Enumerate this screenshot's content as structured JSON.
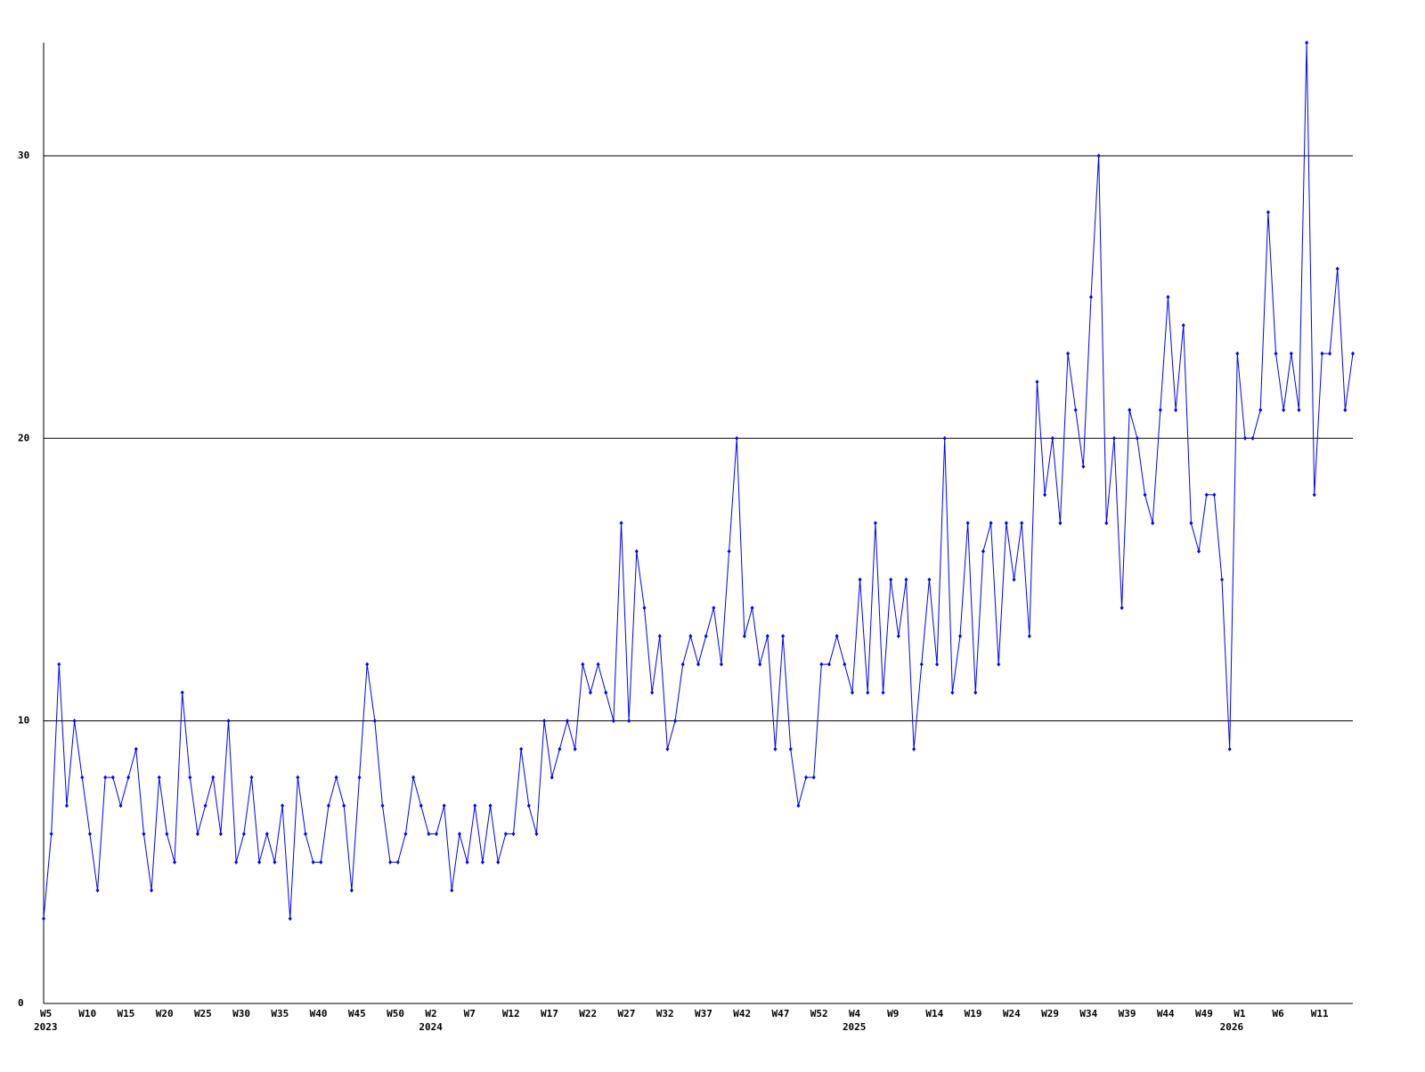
{
  "chart_data": {
    "type": "line",
    "color": "#0000ff",
    "categories": [
      "W5",
      null,
      null,
      null,
      null,
      "W10",
      null,
      null,
      null,
      null,
      "W15",
      null,
      null,
      null,
      null,
      "W20",
      null,
      null,
      null,
      null,
      "W25",
      null,
      null,
      null,
      null,
      "W30",
      null,
      null,
      null,
      null,
      "W35",
      null,
      null,
      null,
      null,
      "W40",
      null,
      null,
      null,
      null,
      "W45",
      null,
      null,
      null,
      null,
      "W50",
      null,
      null,
      null,
      null,
      "W2",
      null,
      null,
      null,
      null,
      "W7",
      null,
      null,
      null,
      null,
      "W12",
      null,
      null,
      null,
      null,
      "W17",
      null,
      null,
      null,
      null,
      "W22",
      null,
      null,
      null,
      null,
      "W27",
      null,
      null,
      null,
      null,
      "W32",
      null,
      null,
      null,
      null,
      "W37",
      null,
      null,
      null,
      null,
      "W42",
      null,
      null,
      null,
      null,
      "W47",
      null,
      null,
      null,
      null,
      "W52",
      null,
      null,
      null,
      null,
      "W4",
      null,
      null,
      null,
      null,
      "W9",
      null,
      null,
      null,
      null,
      "W14",
      null,
      null,
      null,
      null,
      "W19",
      null,
      null,
      null,
      null,
      "W24",
      null,
      null,
      null,
      null,
      "W29",
      null,
      null,
      null,
      null,
      "W34",
      null,
      null,
      null,
      null,
      "W39",
      null,
      null,
      null,
      null,
      "W44",
      null,
      null,
      null,
      null,
      "W49",
      null,
      null,
      null,
      null,
      "W1",
      null,
      null,
      null,
      null,
      "W6",
      null,
      null,
      null,
      null,
      "W11",
      null,
      null,
      null,
      null,
      null
    ],
    "year_labels": [
      "2023",
      null,
      null,
      null,
      null,
      null,
      null,
      null,
      null,
      null,
      null,
      null,
      null,
      null,
      null,
      null,
      null,
      null,
      null,
      null,
      null,
      null,
      null,
      null,
      null,
      null,
      null,
      null,
      null,
      null,
      null,
      null,
      null,
      null,
      null,
      null,
      null,
      null,
      null,
      null,
      null,
      null,
      null,
      null,
      null,
      null,
      null,
      null,
      null,
      null,
      "2024",
      null,
      null,
      null,
      null,
      null,
      null,
      null,
      null,
      null,
      null,
      null,
      null,
      null,
      null,
      null,
      null,
      null,
      null,
      null,
      null,
      null,
      null,
      null,
      null,
      null,
      null,
      null,
      null,
      null,
      null,
      null,
      null,
      null,
      null,
      null,
      null,
      null,
      null,
      null,
      null,
      null,
      null,
      null,
      null,
      null,
      null,
      null,
      null,
      null,
      null,
      null,
      null,
      null,
      null,
      "2025",
      null,
      null,
      null,
      null,
      null,
      null,
      null,
      null,
      null,
      null,
      null,
      null,
      null,
      null,
      null,
      null,
      null,
      null,
      null,
      null,
      null,
      null,
      null,
      null,
      null,
      null,
      null,
      null,
      null,
      null,
      null,
      null,
      null,
      null,
      null,
      null,
      null,
      null,
      null,
      null,
      null,
      null,
      null,
      null,
      null,
      null,
      null,
      null,
      "2026",
      null,
      null,
      null,
      null,
      null,
      null,
      null,
      null,
      null,
      null,
      null,
      null,
      null,
      null,
      null
    ],
    "values": [
      3,
      6,
      12,
      7,
      10,
      8,
      6,
      4,
      8,
      8,
      7,
      8,
      9,
      6,
      4,
      8,
      6,
      5,
      11,
      8,
      6,
      7,
      8,
      6,
      10,
      5,
      6,
      8,
      5,
      6,
      5,
      7,
      3,
      8,
      6,
      5,
      5,
      7,
      8,
      7,
      4,
      8,
      12,
      10,
      7,
      5,
      5,
      6,
      8,
      7,
      6,
      6,
      7,
      4,
      6,
      5,
      7,
      5,
      7,
      5,
      6,
      6,
      9,
      7,
      6,
      10,
      8,
      9,
      10,
      9,
      12,
      11,
      12,
      11,
      10,
      17,
      10,
      16,
      14,
      11,
      13,
      9,
      10,
      12,
      13,
      12,
      13,
      14,
      12,
      16,
      20,
      13,
      14,
      12,
      13,
      9,
      13,
      9,
      7,
      8,
      8,
      12,
      12,
      13,
      12,
      11,
      15,
      11,
      17,
      11,
      15,
      13,
      15,
      9,
      12,
      15,
      12,
      20,
      11,
      13,
      17,
      11,
      16,
      17,
      12,
      17,
      15,
      17,
      13,
      22,
      18,
      20,
      17,
      23,
      21,
      19,
      25,
      30,
      17,
      20,
      14,
      21,
      20,
      18,
      17,
      21,
      25,
      21,
      24,
      17,
      16,
      18,
      18,
      15,
      9,
      23,
      20,
      20,
      21,
      28,
      23,
      21,
      23,
      21,
      34,
      18,
      23,
      23,
      26,
      21,
      23
    ],
    "ylim": [
      0,
      34
    ],
    "yticks": [
      0,
      10,
      20,
      30
    ],
    "grid": true
  }
}
